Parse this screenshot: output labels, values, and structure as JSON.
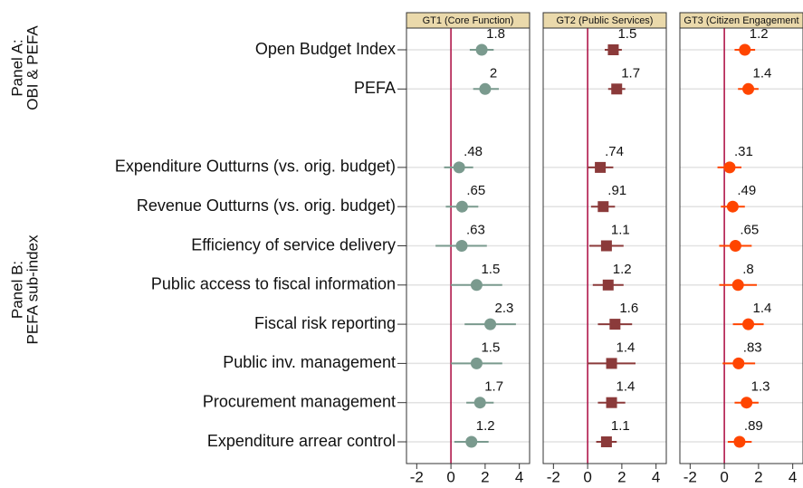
{
  "chart_data": {
    "type": "coefplot",
    "row_groups": [
      {
        "label": [
          "Panel A:",
          "OBI & PEFA"
        ]
      },
      {
        "label": [
          "Panel B:",
          "PEFA sub-index"
        ]
      }
    ],
    "categories": [
      "Open Budget Index",
      "PEFA",
      null,
      "Expenditure Outturns (vs. orig. budget)",
      "Revenue Outturns (vs. orig. budget)",
      "Efficiency of service delivery",
      "Public access to fiscal information",
      "Fiscal risk reporting",
      "Public inv. management",
      "Procurement management",
      "Expenditure arrear control"
    ],
    "xlim": [
      -2.6,
      4.6
    ],
    "xticks": [
      -2,
      0,
      2,
      4
    ],
    "refline": 0,
    "refline_color": "#b0174a",
    "grid": true,
    "panels": [
      {
        "title": "GT1 (Core Function)",
        "color": "#7a9a8e",
        "marker": "circle",
        "values": [
          1.8,
          2,
          null,
          0.48,
          0.65,
          0.63,
          1.5,
          2.3,
          1.5,
          1.7,
          1.2
        ],
        "value_labels": [
          "1.8",
          "2",
          null,
          ".48",
          ".65",
          ".63",
          "1.5",
          "2.3",
          "1.5",
          "1.7",
          "1.2"
        ],
        "lower": [
          1.1,
          1.3,
          null,
          -0.4,
          -0.3,
          -0.9,
          0,
          0.8,
          0,
          0.9,
          0.2
        ],
        "upper": [
          2.5,
          2.8,
          null,
          1.3,
          1.6,
          2.1,
          3,
          3.8,
          3,
          2.5,
          2.2
        ]
      },
      {
        "title": "GT2 (Public Services)",
        "color": "#8b3a3a",
        "marker": "square",
        "values": [
          1.5,
          1.7,
          null,
          0.74,
          0.91,
          1.1,
          1.2,
          1.6,
          1.4,
          1.4,
          1.1
        ],
        "value_labels": [
          "1.5",
          "1.7",
          null,
          ".74",
          ".91",
          "1.1",
          "1.2",
          "1.6",
          "1.4",
          "1.4",
          "1.1"
        ],
        "lower": [
          1.0,
          1.2,
          null,
          0,
          0.2,
          0.1,
          0.3,
          0.6,
          0,
          0.6,
          0.5
        ],
        "upper": [
          2.0,
          2.2,
          null,
          1.5,
          1.6,
          2.1,
          2.1,
          2.6,
          2.8,
          2.2,
          1.7
        ]
      },
      {
        "title": "GT3 (Citizen Engagement",
        "color": "#ff4500",
        "marker": "circle",
        "values": [
          1.2,
          1.4,
          null,
          0.31,
          0.49,
          0.65,
          0.8,
          1.4,
          0.83,
          1.3,
          0.89
        ],
        "value_labels": [
          "1.2",
          "1.4",
          null,
          ".31",
          ".49",
          ".65",
          ".8",
          "1.4",
          ".83",
          "1.3",
          ".89"
        ],
        "lower": [
          0.6,
          0.8,
          null,
          -0.4,
          -0.2,
          -0.3,
          -0.3,
          0.5,
          -0.1,
          0.6,
          0.2
        ],
        "upper": [
          1.8,
          2.0,
          null,
          1.0,
          1.2,
          1.6,
          1.9,
          2.3,
          1.8,
          2.0,
          1.6
        ]
      }
    ]
  }
}
